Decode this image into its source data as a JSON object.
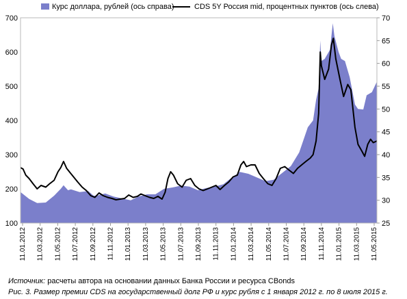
{
  "chart_data": {
    "type": "area+line",
    "legend": [
      {
        "label": "Курс доллара, рублей (ось справа)",
        "kind": "area",
        "color": "#7b7fcb"
      },
      {
        "label": "CDS 5Y Россия mid, процентных пунктов (ось слева)",
        "kind": "line",
        "color": "#000000"
      }
    ],
    "y_left": {
      "min": 100,
      "max": 700,
      "ticks": [
        "100",
        "200",
        "300",
        "400",
        "500",
        "600",
        "700"
      ]
    },
    "y_right": {
      "min": 25,
      "max": 70,
      "ticks": [
        "25",
        "30",
        "35",
        "40",
        "45",
        "50",
        "55",
        "60",
        "65",
        "70"
      ]
    },
    "x_ticks": [
      "11.01.2012",
      "11.03.2012",
      "11.05.2012",
      "11.07.2012",
      "11.09.2012",
      "11.11.2012",
      "11.01.2013",
      "11.03.2013",
      "11.05.2013",
      "11.07.2013",
      "11.09.2013",
      "11.11.2013",
      "11.01.2014",
      "11.03.2014",
      "11.05.2014",
      "11.07.2014",
      "11.09.2014",
      "11.11.2014",
      "11.01.2015",
      "11.03.2015",
      "11.05.2015"
    ],
    "x_range": [
      "2012-01-01",
      "2015-07-08"
    ],
    "series": [
      {
        "name": "Курс доллара, рублей (ось справа)",
        "axis": "right",
        "type": "area",
        "points": [
          [
            "2012-01-01",
            31.8
          ],
          [
            "2012-02-01",
            30.3
          ],
          [
            "2012-03-01",
            29.4
          ],
          [
            "2012-04-01",
            29.5
          ],
          [
            "2012-05-01",
            31.0
          ],
          [
            "2012-05-25",
            32.5
          ],
          [
            "2012-06-04",
            33.3
          ],
          [
            "2012-06-20",
            32.2
          ],
          [
            "2012-07-01",
            32.4
          ],
          [
            "2012-08-01",
            31.8
          ],
          [
            "2012-09-01",
            32.0
          ],
          [
            "2012-09-20",
            31.0
          ],
          [
            "2012-10-01",
            31.0
          ],
          [
            "2012-11-01",
            31.5
          ],
          [
            "2012-12-01",
            30.8
          ],
          [
            "2013-01-01",
            30.4
          ],
          [
            "2013-02-01",
            30.0
          ],
          [
            "2013-03-01",
            30.8
          ],
          [
            "2013-04-01",
            31.3
          ],
          [
            "2013-05-01",
            31.3
          ],
          [
            "2013-06-01",
            32.5
          ],
          [
            "2013-07-01",
            32.8
          ],
          [
            "2013-08-01",
            33.2
          ],
          [
            "2013-09-01",
            33.0
          ],
          [
            "2013-10-01",
            32.2
          ],
          [
            "2013-11-01",
            32.7
          ],
          [
            "2013-12-01",
            33.0
          ],
          [
            "2014-01-01",
            33.5
          ],
          [
            "2014-02-01",
            35.0
          ],
          [
            "2014-03-01",
            36.2
          ],
          [
            "2014-04-01",
            35.8
          ],
          [
            "2014-05-01",
            35.0
          ],
          [
            "2014-06-01",
            34.2
          ],
          [
            "2014-07-01",
            34.5
          ],
          [
            "2014-08-01",
            36.0
          ],
          [
            "2014-09-01",
            37.5
          ],
          [
            "2014-10-01",
            40.5
          ],
          [
            "2014-11-01",
            46.0
          ],
          [
            "2014-11-20",
            47.5
          ],
          [
            "2014-12-01",
            52.0
          ],
          [
            "2014-12-10",
            54.5
          ],
          [
            "2014-12-16",
            65.0
          ],
          [
            "2014-12-20",
            60.5
          ],
          [
            "2015-01-01",
            61.0
          ],
          [
            "2015-01-20",
            63.0
          ],
          [
            "2015-01-30",
            68.8
          ],
          [
            "2015-02-05",
            66.0
          ],
          [
            "2015-02-20",
            62.5
          ],
          [
            "2015-03-01",
            61.0
          ],
          [
            "2015-03-15",
            60.5
          ],
          [
            "2015-04-01",
            57.0
          ],
          [
            "2015-04-20",
            51.0
          ],
          [
            "2015-05-01",
            50.0
          ],
          [
            "2015-05-20",
            49.9
          ],
          [
            "2015-06-01",
            53.0
          ],
          [
            "2015-06-20",
            53.7
          ],
          [
            "2015-07-08",
            56.0
          ]
        ]
      },
      {
        "name": "CDS 5Y Россия mid, процентных пунктов (ось слева)",
        "axis": "left",
        "type": "line",
        "points": [
          [
            "2012-01-01",
            262
          ],
          [
            "2012-01-10",
            258
          ],
          [
            "2012-01-20",
            240
          ],
          [
            "2012-02-01",
            230
          ],
          [
            "2012-02-15",
            215
          ],
          [
            "2012-03-01",
            200
          ],
          [
            "2012-03-15",
            210
          ],
          [
            "2012-04-01",
            205
          ],
          [
            "2012-04-15",
            215
          ],
          [
            "2012-05-01",
            225
          ],
          [
            "2012-05-15",
            250
          ],
          [
            "2012-05-25",
            262
          ],
          [
            "2012-06-04",
            280
          ],
          [
            "2012-06-15",
            260
          ],
          [
            "2012-06-25",
            250
          ],
          [
            "2012-07-10",
            235
          ],
          [
            "2012-07-25",
            220
          ],
          [
            "2012-08-10",
            205
          ],
          [
            "2012-08-25",
            195
          ],
          [
            "2012-09-10",
            180
          ],
          [
            "2012-09-25",
            175
          ],
          [
            "2012-10-10",
            188
          ],
          [
            "2012-10-25",
            180
          ],
          [
            "2012-11-10",
            175
          ],
          [
            "2012-11-25",
            172
          ],
          [
            "2012-12-10",
            168
          ],
          [
            "2012-12-25",
            170
          ],
          [
            "2013-01-10",
            172
          ],
          [
            "2013-01-25",
            182
          ],
          [
            "2013-02-10",
            175
          ],
          [
            "2013-02-25",
            178
          ],
          [
            "2013-03-10",
            185
          ],
          [
            "2013-03-25",
            180
          ],
          [
            "2013-04-10",
            175
          ],
          [
            "2013-04-25",
            172
          ],
          [
            "2013-05-10",
            178
          ],
          [
            "2013-05-25",
            170
          ],
          [
            "2013-06-05",
            190
          ],
          [
            "2013-06-15",
            230
          ],
          [
            "2013-06-25",
            250
          ],
          [
            "2013-07-05",
            240
          ],
          [
            "2013-07-20",
            215
          ],
          [
            "2013-08-05",
            205
          ],
          [
            "2013-08-20",
            225
          ],
          [
            "2013-09-05",
            230
          ],
          [
            "2013-09-20",
            210
          ],
          [
            "2013-10-05",
            200
          ],
          [
            "2013-10-20",
            195
          ],
          [
            "2013-11-05",
            200
          ],
          [
            "2013-11-20",
            205
          ],
          [
            "2013-12-05",
            210
          ],
          [
            "2013-12-20",
            198
          ],
          [
            "2014-01-05",
            210
          ],
          [
            "2014-01-20",
            220
          ],
          [
            "2014-02-05",
            235
          ],
          [
            "2014-02-20",
            240
          ],
          [
            "2014-03-05",
            270
          ],
          [
            "2014-03-15",
            280
          ],
          [
            "2014-03-25",
            265
          ],
          [
            "2014-04-10",
            270
          ],
          [
            "2014-04-25",
            270
          ],
          [
            "2014-05-10",
            245
          ],
          [
            "2014-05-25",
            230
          ],
          [
            "2014-06-10",
            215
          ],
          [
            "2014-06-25",
            210
          ],
          [
            "2014-07-10",
            230
          ],
          [
            "2014-07-25",
            260
          ],
          [
            "2014-08-10",
            265
          ],
          [
            "2014-08-25",
            255
          ],
          [
            "2014-09-10",
            245
          ],
          [
            "2014-09-25",
            260
          ],
          [
            "2014-10-10",
            270
          ],
          [
            "2014-10-25",
            280
          ],
          [
            "2014-11-10",
            290
          ],
          [
            "2014-11-20",
            300
          ],
          [
            "2014-12-01",
            340
          ],
          [
            "2014-12-10",
            420
          ],
          [
            "2014-12-16",
            600
          ],
          [
            "2014-12-20",
            560
          ],
          [
            "2015-01-01",
            520
          ],
          [
            "2015-01-15",
            550
          ],
          [
            "2015-01-25",
            620
          ],
          [
            "2015-02-01",
            640
          ],
          [
            "2015-02-10",
            580
          ],
          [
            "2015-02-25",
            520
          ],
          [
            "2015-03-10",
            470
          ],
          [
            "2015-03-25",
            505
          ],
          [
            "2015-04-05",
            490
          ],
          [
            "2015-04-20",
            380
          ],
          [
            "2015-05-01",
            330
          ],
          [
            "2015-05-15",
            310
          ],
          [
            "2015-05-25",
            295
          ],
          [
            "2015-06-05",
            330
          ],
          [
            "2015-06-15",
            345
          ],
          [
            "2015-06-25",
            335
          ],
          [
            "2015-07-08",
            340
          ]
        ]
      }
    ]
  },
  "footer": {
    "source_lead": "Источник:",
    "source_text": " расчеты автора на основании данных Банка России и ресурса CBonds",
    "caption": "Рис. 3. Размер премии CDS на государственный долг РФ и курс рубля с 1 января 2012 г. по 8 июля 2015 г."
  }
}
